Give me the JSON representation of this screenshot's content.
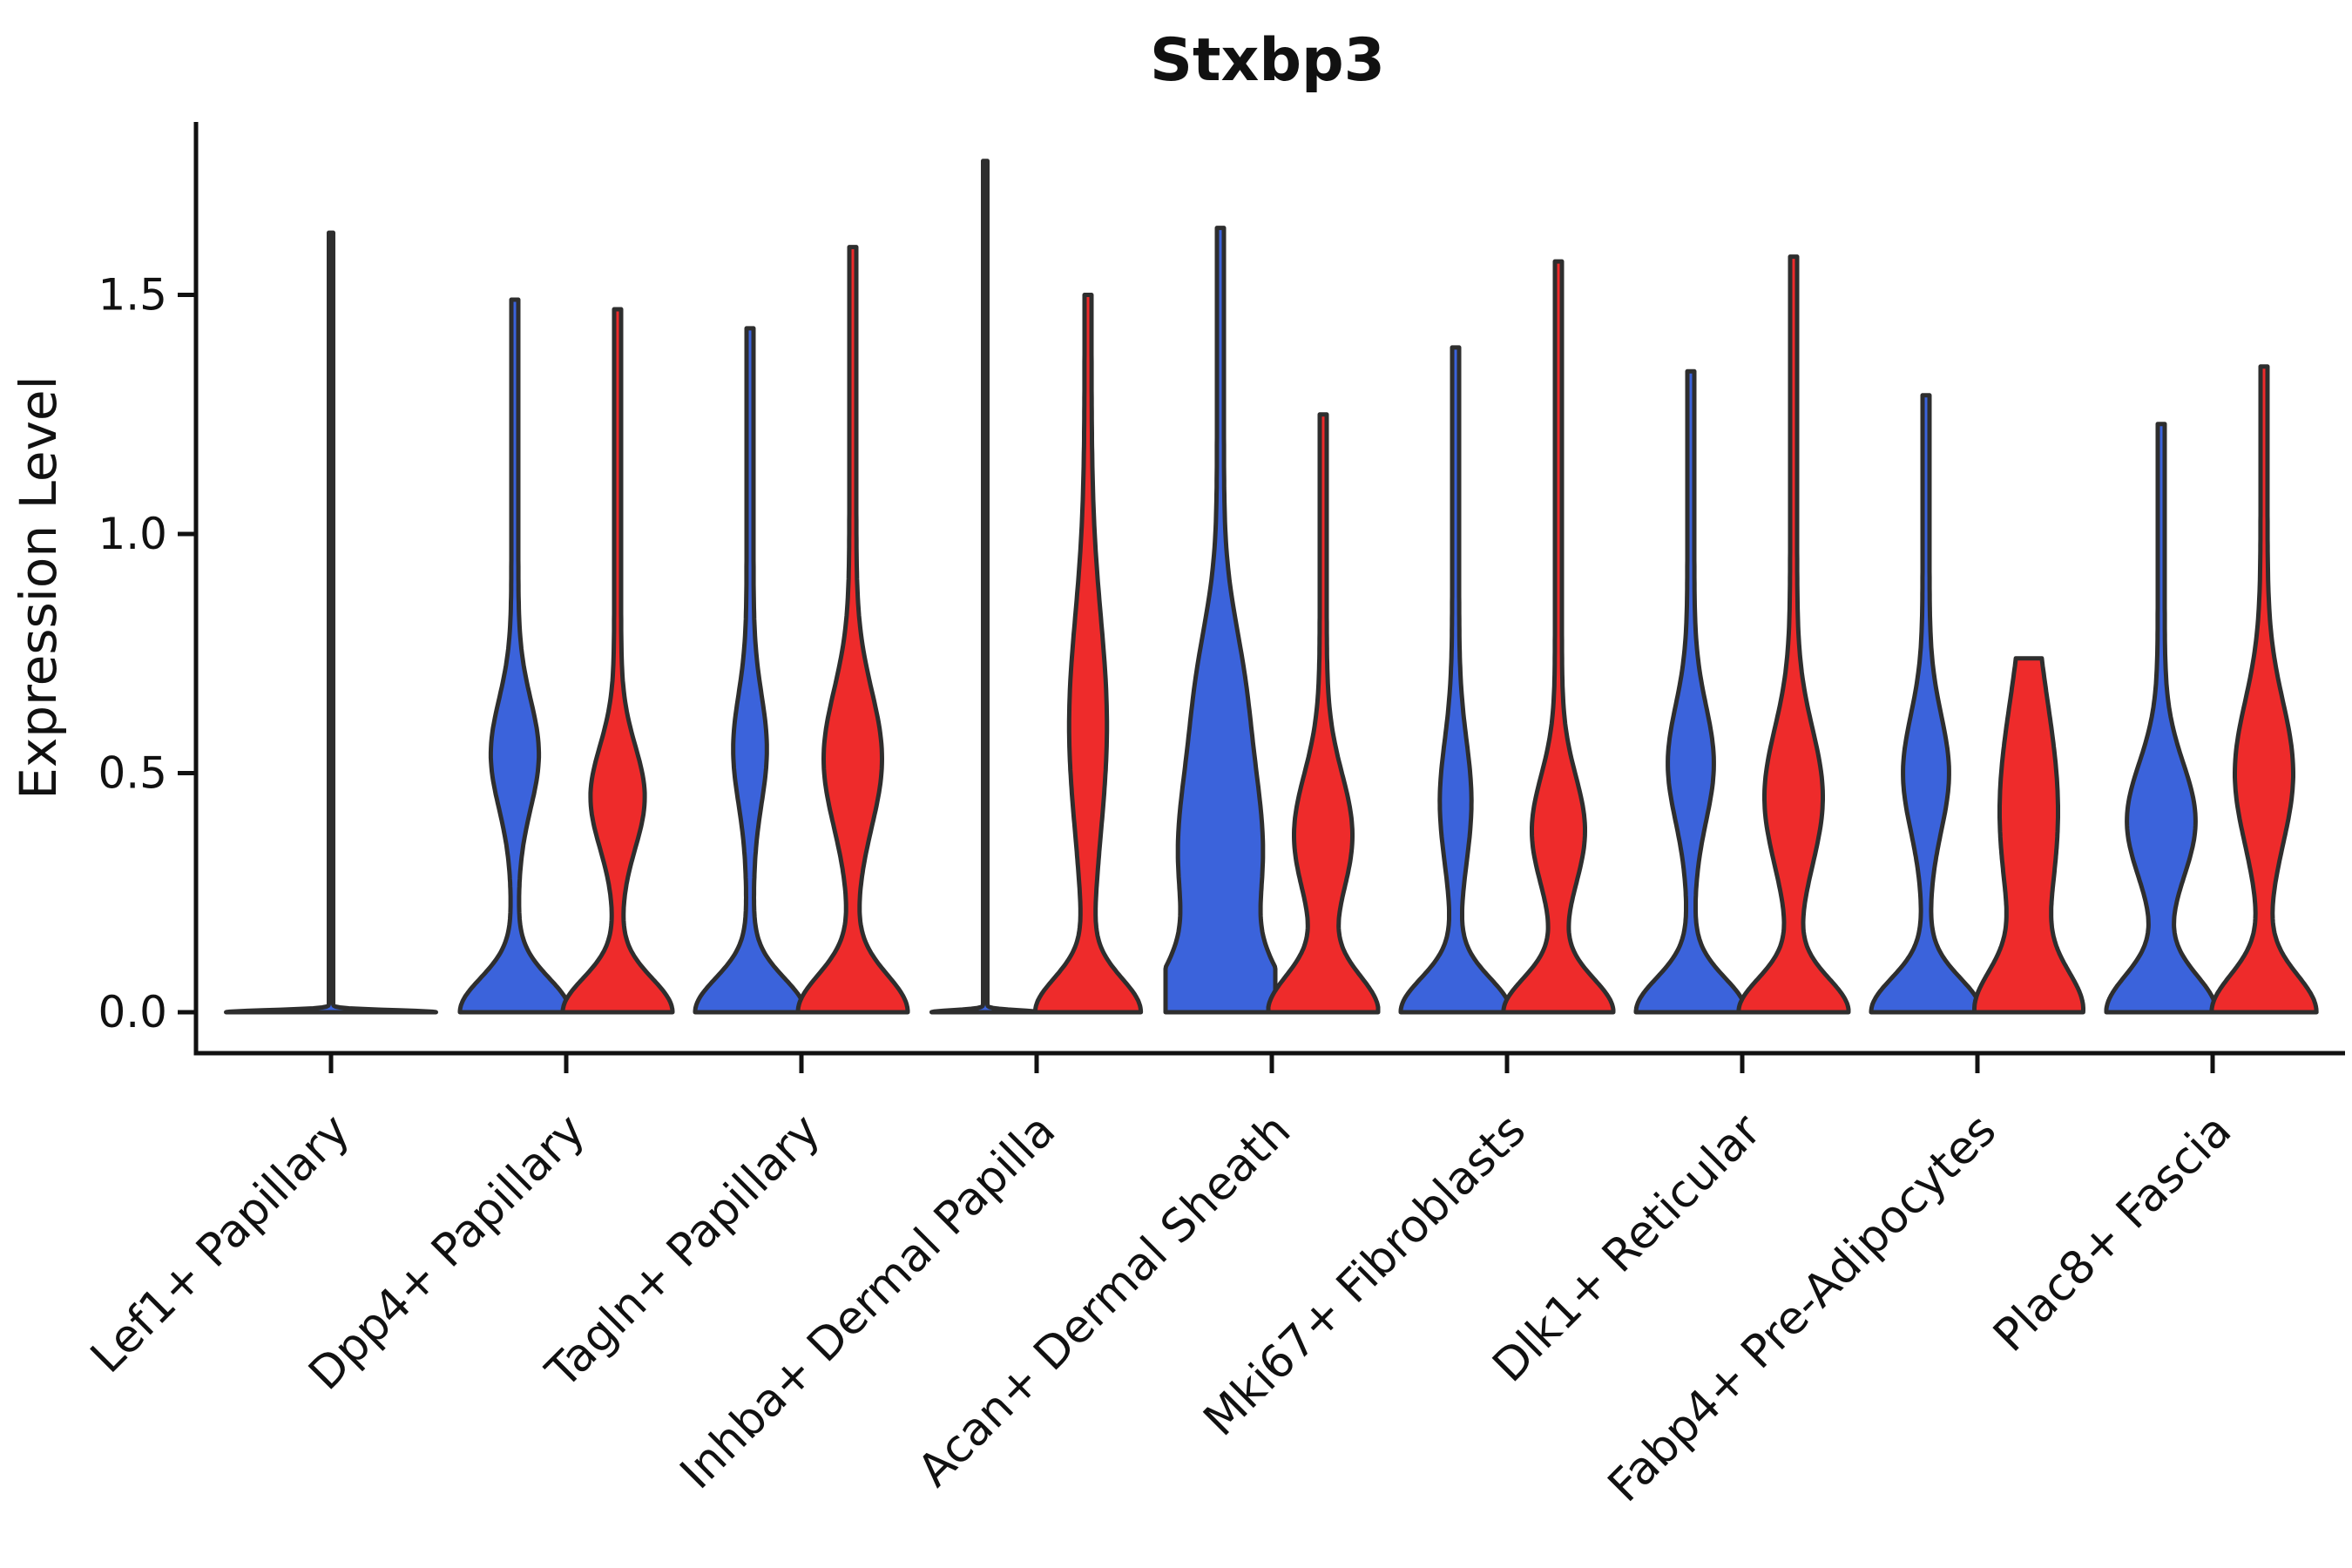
{
  "title": "Stxbp3",
  "colors": {
    "blue": "#3B63DB",
    "red": "#EE2B2B",
    "outline": "#2E2E2E",
    "axis": "#111111",
    "text": "#111111"
  },
  "chart_data": {
    "type": "violin",
    "title": "Stxbp3",
    "xlabel": "",
    "ylabel": "Expression Level",
    "ylim": [
      0,
      1.85
    ],
    "y_ticks": [
      {
        "value": 0.0,
        "label": "0.0"
      },
      {
        "value": 0.5,
        "label": "0.5"
      },
      {
        "value": 1.0,
        "label": "1.0"
      },
      {
        "value": 1.5,
        "label": "1.5"
      }
    ],
    "legend": "none (two conditions encoded by blue/red fill, no legend shown)",
    "categories": [
      "Lef1+ Papillary",
      "Dpp4+ Papillary",
      "Tagln+ Papillary",
      "Inhba+ Dermal Papilla",
      "Acan+ Dermal Sheath",
      "Mki67+ Fibroblasts",
      "Dlk1+ Reticular",
      "Fabp4+ Pre-Adipocytes",
      "Plac8+ Fascia"
    ],
    "groups": [
      {
        "category": "Lef1+ Papillary",
        "violins": [
          {
            "series": "blue",
            "side": "single",
            "max": 1.63,
            "flat_at_zero": true,
            "half_width": 118,
            "floor": 2.5,
            "components": [
              [
                0.0,
                0.006,
                1.0
              ]
            ]
          }
        ]
      },
      {
        "category": "Dpp4+ Papillary",
        "violins": [
          {
            "series": "blue",
            "side": "left",
            "max": 1.49,
            "flat_at_zero": false,
            "half_width": 59,
            "floor": 4,
            "components": [
              [
                0.0,
                0.1,
                1.0
              ],
              [
                0.54,
                0.16,
                0.4
              ]
            ]
          },
          {
            "series": "red",
            "side": "right",
            "max": 1.47,
            "flat_at_zero": false,
            "half_width": 59,
            "floor": 4,
            "components": [
              [
                0.0,
                0.1,
                1.0
              ],
              [
                0.45,
                0.15,
                0.46
              ]
            ]
          }
        ]
      },
      {
        "category": "Tagln+ Papillary",
        "violins": [
          {
            "series": "blue",
            "side": "left",
            "max": 1.43,
            "flat_at_zero": false,
            "half_width": 59,
            "floor": 4,
            "components": [
              [
                0.0,
                0.1,
                1.0
              ],
              [
                0.55,
                0.16,
                0.26
              ]
            ]
          },
          {
            "series": "red",
            "side": "right",
            "max": 1.6,
            "flat_at_zero": false,
            "half_width": 59,
            "floor": 4,
            "components": [
              [
                0.0,
                0.11,
                1.0
              ],
              [
                0.53,
                0.2,
                0.5
              ]
            ]
          }
        ]
      },
      {
        "category": "Inhba+ Dermal Papilla",
        "violins": [
          {
            "series": "blue",
            "side": "left",
            "max": 1.78,
            "flat_at_zero": true,
            "half_width": 59,
            "floor": 2.5,
            "components": [
              [
                0.0,
                0.006,
                1.0
              ]
            ]
          },
          {
            "series": "red",
            "side": "right",
            "max": 1.5,
            "flat_at_zero": false,
            "half_width": 59,
            "floor": 4,
            "components": [
              [
                0.0,
                0.1,
                0.95
              ],
              [
                0.6,
                0.32,
                0.3
              ]
            ]
          }
        ]
      },
      {
        "category": "Acan+ Dermal Sheath",
        "violins": [
          {
            "series": "blue",
            "side": "left",
            "max": 1.64,
            "flat_at_zero": false,
            "half_width": 59,
            "floor": 4,
            "components": [
              [
                0.0,
                0.13,
                1.0
              ],
              [
                0.33,
                0.3,
                0.75
              ],
              [
                0.7,
                0.2,
                0.25
              ]
            ]
          },
          {
            "series": "red",
            "side": "right",
            "max": 1.25,
            "flat_at_zero": false,
            "half_width": 59,
            "floor": 4,
            "components": [
              [
                0.0,
                0.11,
                1.0
              ],
              [
                0.37,
                0.18,
                0.5
              ]
            ]
          }
        ]
      },
      {
        "category": "Mki67+ Fibroblasts",
        "violins": [
          {
            "series": "blue",
            "side": "left",
            "max": 1.39,
            "flat_at_zero": false,
            "half_width": 59,
            "floor": 4,
            "components": [
              [
                0.0,
                0.1,
                1.0
              ],
              [
                0.44,
                0.18,
                0.24
              ]
            ]
          },
          {
            "series": "red",
            "side": "right",
            "max": 1.57,
            "flat_at_zero": false,
            "half_width": 59,
            "floor": 4,
            "components": [
              [
                0.0,
                0.1,
                1.0
              ],
              [
                0.38,
                0.16,
                0.45
              ]
            ]
          }
        ]
      },
      {
        "category": "Dlk1+ Reticular",
        "violins": [
          {
            "series": "blue",
            "side": "left",
            "max": 1.34,
            "flat_at_zero": false,
            "half_width": 59,
            "floor": 4,
            "components": [
              [
                0.0,
                0.1,
                1.0
              ],
              [
                0.52,
                0.17,
                0.38
              ]
            ]
          },
          {
            "series": "red",
            "side": "right",
            "max": 1.58,
            "flat_at_zero": false,
            "half_width": 59,
            "floor": 4,
            "components": [
              [
                0.0,
                0.1,
                1.0
              ],
              [
                0.45,
                0.2,
                0.5
              ]
            ]
          }
        ]
      },
      {
        "category": "Fabp4+ Pre-Adipocytes",
        "violins": [
          {
            "series": "blue",
            "side": "left",
            "max": 1.29,
            "flat_at_zero": false,
            "half_width": 59,
            "floor": 4,
            "components": [
              [
                0.0,
                0.1,
                1.0
              ],
              [
                0.5,
                0.17,
                0.38
              ]
            ]
          },
          {
            "series": "red",
            "side": "right",
            "max": 0.74,
            "flat_at_zero": false,
            "truncated_top": true,
            "half_width": 59,
            "floor": 4,
            "components": [
              [
                0.0,
                0.12,
                0.9
              ],
              [
                0.42,
                0.32,
                0.5
              ]
            ]
          }
        ]
      },
      {
        "category": "Plac8+ Fascia",
        "violins": [
          {
            "series": "blue",
            "side": "left",
            "max": 1.23,
            "flat_at_zero": false,
            "half_width": 59,
            "floor": 4,
            "components": [
              [
                0.0,
                0.11,
                1.0
              ],
              [
                0.4,
                0.17,
                0.6
              ]
            ]
          },
          {
            "series": "red",
            "side": "right",
            "max": 1.35,
            "flat_at_zero": false,
            "half_width": 59,
            "floor": 4,
            "components": [
              [
                0.0,
                0.11,
                0.95
              ],
              [
                0.5,
                0.21,
                0.5
              ]
            ]
          }
        ]
      }
    ]
  }
}
